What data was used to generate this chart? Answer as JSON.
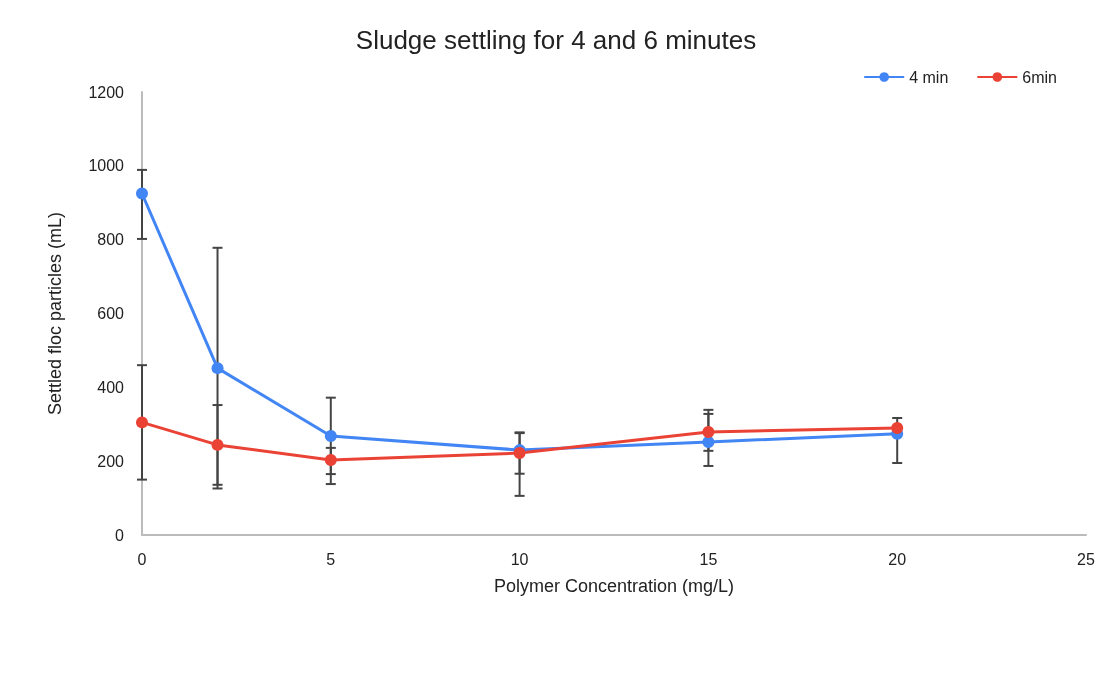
{
  "chart_data": {
    "type": "line",
    "title": "Sludge settling for 4 and 6 minutes",
    "xlabel": "Polymer Concentration (mg/L)",
    "ylabel": "Settled floc particles (mL)",
    "x": [
      0,
      2,
      5,
      10,
      15,
      20
    ],
    "series": [
      {
        "name": "4 min",
        "color": "#4285f4",
        "values": [
          925,
          452,
          268,
          230,
          252,
          274
        ],
        "errors": [
          [
            802,
            989
          ],
          [
            126,
            778
          ],
          [
            165,
            372
          ],
          [
            106,
            276
          ],
          [
            187,
            328
          ],
          [
            195,
            317
          ]
        ]
      },
      {
        "name": "6min",
        "color": "#ea4335",
        "values": [
          305,
          244,
          203,
          222,
          279,
          290
        ],
        "errors": [
          [
            150,
            460
          ],
          [
            136,
            352
          ],
          [
            138,
            236
          ],
          [
            166,
            278
          ],
          [
            228,
            339
          ],
          null
        ]
      }
    ],
    "xlim": [
      0,
      25
    ],
    "xticks": [
      0,
      5,
      10,
      15,
      20,
      25
    ],
    "ylim": [
      0,
      1200
    ],
    "yticks": [
      0,
      200,
      400,
      600,
      800,
      1000,
      1200
    ],
    "grid": false,
    "legend": "top right",
    "marker": "circle",
    "line_style": "solid"
  }
}
